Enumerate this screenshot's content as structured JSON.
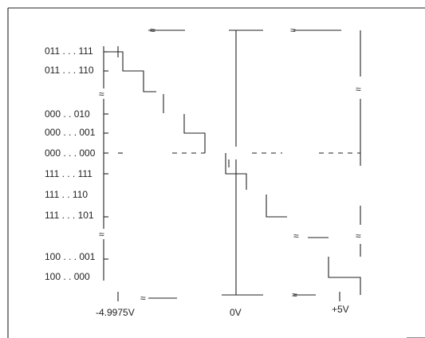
{
  "codes": [
    "011 . . . 111",
    "011 . . . 110",
    "000 . . 010",
    "000 . . . 001",
    "000 . . . 000",
    "111 . . . 111",
    "111 . . 110",
    "111 . . . 101",
    "100 . . . 001",
    "100 . . 000"
  ],
  "voltages": {
    "neg": "-4.9975V",
    "zero": "0V",
    "pos": "+5V"
  },
  "break_symbol": "≈"
}
